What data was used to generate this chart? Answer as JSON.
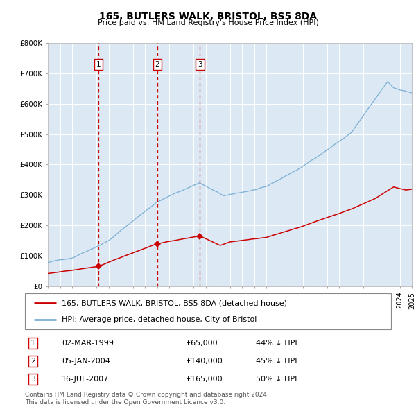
{
  "title": "165, BUTLERS WALK, BRISTOL, BS5 8DA",
  "subtitle": "Price paid vs. HM Land Registry's House Price Index (HPI)",
  "plot_bg_color": "#dce9f5",
  "ylim": [
    0,
    800000
  ],
  "yticks": [
    0,
    100000,
    200000,
    300000,
    400000,
    500000,
    600000,
    700000,
    800000
  ],
  "ytick_labels": [
    "£0",
    "£100K",
    "£200K",
    "£300K",
    "£400K",
    "£500K",
    "£600K",
    "£700K",
    "£800K"
  ],
  "red_line_label": "165, BUTLERS WALK, BRISTOL, BS5 8DA (detached house)",
  "blue_line_label": "HPI: Average price, detached house, City of Bristol",
  "sale_dates": [
    "02-MAR-1999",
    "05-JAN-2004",
    "16-JUL-2007"
  ],
  "sale_prices": [
    65000,
    140000,
    165000
  ],
  "sale_hpi_pct": [
    "44% ↓ HPI",
    "45% ↓ HPI",
    "50% ↓ HPI"
  ],
  "vline_years": [
    1999.17,
    2004.02,
    2007.54
  ],
  "footer": "Contains HM Land Registry data © Crown copyright and database right 2024.\nThis data is licensed under the Open Government Licence v3.0.",
  "red_color": "#cc0000",
  "blue_color": "#7bafd4",
  "vline_color": "#cc0000",
  "grid_color": "#ffffff",
  "title_fontsize": 10,
  "subtitle_fontsize": 8,
  "tick_fontsize": 7.5,
  "legend_fontsize": 8,
  "table_fontsize": 8,
  "footer_fontsize": 6.5
}
